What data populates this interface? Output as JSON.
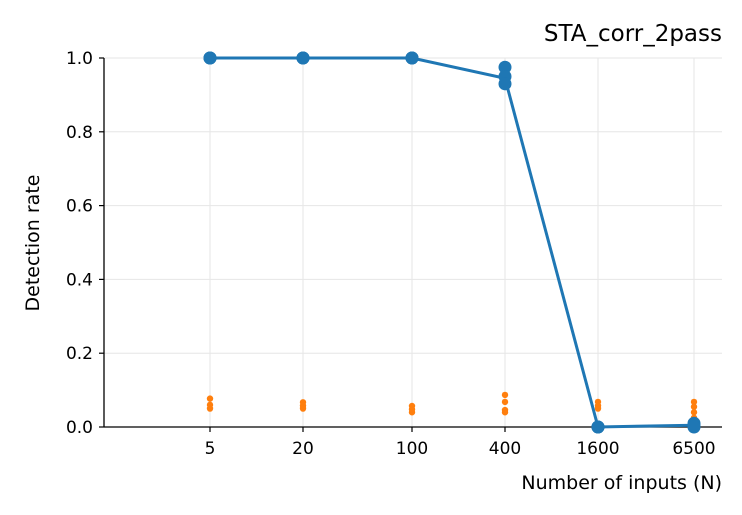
{
  "chart_data": {
    "type": "scatter",
    "title": "STA_corr_2pass",
    "xlabel": "Number of inputs (N)",
    "ylabel": "Detection rate",
    "x_scale": "log",
    "x_ticks": [
      5,
      20,
      100,
      400,
      1600,
      6500
    ],
    "x_tick_labels": [
      "5",
      "20",
      "100",
      "400",
      "1600",
      "6500"
    ],
    "ylim": [
      0,
      1.0
    ],
    "y_ticks": [
      0,
      0.2,
      0.4,
      0.6,
      0.8,
      1.0
    ],
    "y_tick_labels": [
      "0.0",
      "0.2",
      "0.4",
      "0.6",
      "0.8",
      "1.0"
    ],
    "grid": true,
    "series": [
      {
        "color": "#1f77b4",
        "line": true,
        "marker": "large-dot",
        "mean": [
          {
            "x": 5,
            "y": 1.0
          },
          {
            "x": 20,
            "y": 1.0
          },
          {
            "x": 100,
            "y": 1.0
          },
          {
            "x": 400,
            "y": 0.945
          },
          {
            "x": 1600,
            "y": 0.0
          },
          {
            "x": 6500,
            "y": 0.005
          }
        ],
        "points": [
          {
            "x": 5,
            "y": 1.0
          },
          {
            "x": 5,
            "y": 1.0
          },
          {
            "x": 5,
            "y": 1.0
          },
          {
            "x": 20,
            "y": 1.0
          },
          {
            "x": 20,
            "y": 1.0
          },
          {
            "x": 20,
            "y": 1.0
          },
          {
            "x": 100,
            "y": 1.0
          },
          {
            "x": 100,
            "y": 1.0
          },
          {
            "x": 100,
            "y": 1.0
          },
          {
            "x": 400,
            "y": 0.975
          },
          {
            "x": 400,
            "y": 0.95
          },
          {
            "x": 400,
            "y": 0.93
          },
          {
            "x": 1600,
            "y": 0.0
          },
          {
            "x": 1600,
            "y": 0.0
          },
          {
            "x": 1600,
            "y": 0.0
          },
          {
            "x": 6500,
            "y": 0.01
          },
          {
            "x": 6500,
            "y": 0.005
          },
          {
            "x": 6500,
            "y": 0.0
          }
        ]
      },
      {
        "color": "#ff7f0e",
        "line": false,
        "marker": "small-dot",
        "points": [
          {
            "x": 5,
            "y": 0.077
          },
          {
            "x": 5,
            "y": 0.06
          },
          {
            "x": 5,
            "y": 0.05
          },
          {
            "x": 20,
            "y": 0.067
          },
          {
            "x": 20,
            "y": 0.058
          },
          {
            "x": 20,
            "y": 0.05
          },
          {
            "x": 100,
            "y": 0.057
          },
          {
            "x": 100,
            "y": 0.048
          },
          {
            "x": 100,
            "y": 0.04
          },
          {
            "x": 400,
            "y": 0.087
          },
          {
            "x": 400,
            "y": 0.068
          },
          {
            "x": 400,
            "y": 0.046
          },
          {
            "x": 400,
            "y": 0.04
          },
          {
            "x": 1600,
            "y": 0.068
          },
          {
            "x": 1600,
            "y": 0.058
          },
          {
            "x": 1600,
            "y": 0.05
          },
          {
            "x": 6500,
            "y": 0.068
          },
          {
            "x": 6500,
            "y": 0.055
          },
          {
            "x": 6500,
            "y": 0.04
          },
          {
            "x": 6500,
            "y": 0.025
          }
        ]
      }
    ]
  }
}
